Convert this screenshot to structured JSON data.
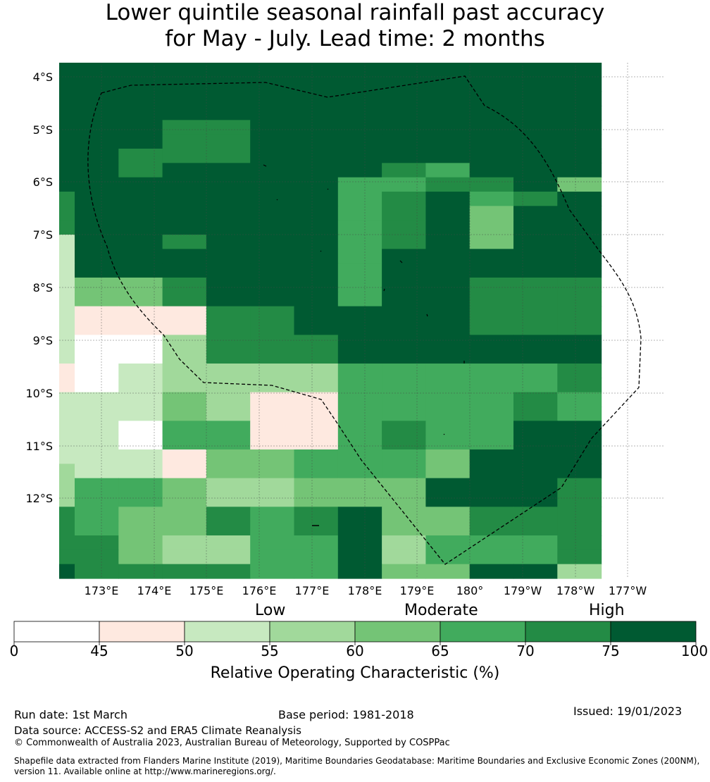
{
  "title": {
    "line1": "Lower quintile seasonal rainfall past accuracy",
    "line2": "for May - July. Lead time: 2 months"
  },
  "map": {
    "lat_labels": [
      "4°S",
      "5°S",
      "6°S",
      "7°S",
      "8°S",
      "9°S",
      "10°S",
      "11°S",
      "12°S"
    ],
    "lon_labels": [
      "173°E",
      "174°E",
      "175°E",
      "176°E",
      "177°E",
      "178°E",
      "179°E",
      "180°",
      "179°W",
      "178°W",
      "177°W"
    ],
    "grid_rows": [
      "7777777777777",
      "7777777777777",
      "7777777777777",
      "7777777777777",
      "7776677777777",
      "7776677777777",
      "7766677777777",
      "7767777765777",
      "7777777556674",
      "6777777567567",
      "6777777567477",
      "6777777567477",
      "2776777567477",
      "2777777577777",
      "2777777577777",
      "2446777577666",
      "2446777577666",
      "2111667777666",
      "2111667777666",
      "2003666777777",
      "2003666777777",
      "1023333555556",
      "1023333555556",
      "2224311555565",
      "2224311555565",
      "2205511565577",
      "2205511565577",
      "2221445554777",
      "3221445554777",
      "3554334447776",
      "3554334447776",
      "6544656744666",
      "6544656744666",
      "6643355735556",
      "6643355735556",
      "7666655744773"
    ],
    "palette": [
      "#ffffff",
      "#fee9e0",
      "#c7e9c0",
      "#a1d99b",
      "#74c476",
      "#41ab5d",
      "#238b45",
      "#005a32"
    ]
  },
  "legend": {
    "categories": [
      "Low",
      "Moderate",
      "High"
    ],
    "ticks": [
      "0",
      "45",
      "50",
      "55",
      "60",
      "65",
      "70",
      "75",
      "100"
    ],
    "colors": [
      "#ffffff",
      "#fee9e0",
      "#c7e9c0",
      "#a1d99b",
      "#74c476",
      "#41ab5d",
      "#238b45",
      "#005a32"
    ],
    "title": "Relative Operating Characteristic (%)"
  },
  "footer": {
    "run_date": "Run date: 1st March",
    "base_period": "Base period: 1981-2018",
    "issued": "Issued: 19/01/2023",
    "data_source": "Data source: ACCESS-S2 and ERA5 Climate Reanalysis",
    "copyright": "© Commonwealth of Australia 2023, Australian Bureau of Meteorology, Supported by COSPPac",
    "shapefile": "Shapefile data extracted from Flanders Marine Institute (2019), Maritime Boundaries Geodatabase: Maritime Boundaries and Exclusive Economic Zones (200NM), version 11. Available online at http://www.marineregions.org/."
  }
}
